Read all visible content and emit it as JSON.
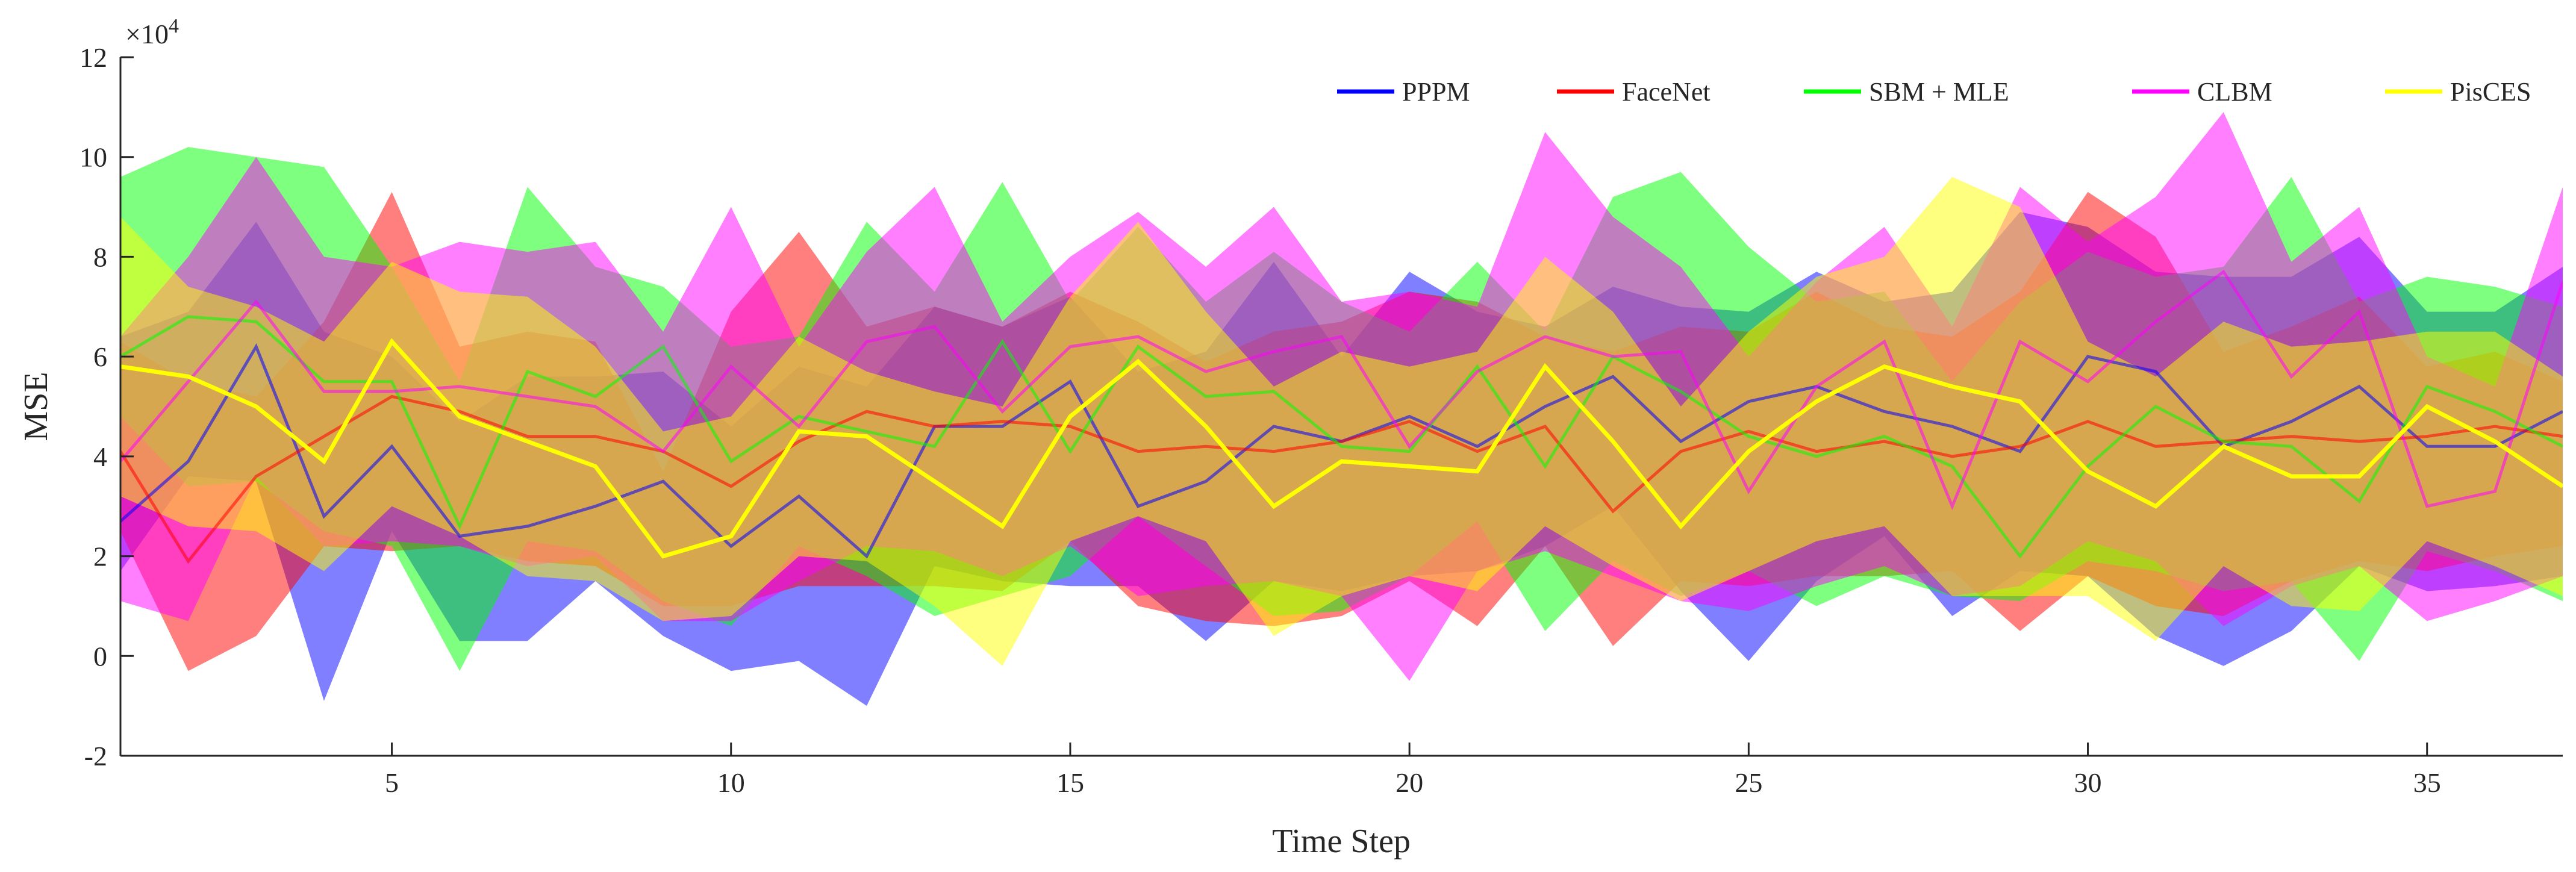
{
  "chart_data": {
    "type": "line",
    "title": "",
    "xlabel": "Time Step",
    "ylabel": "MSE",
    "y_exponent_label": "×10",
    "y_exponent_power": "4",
    "xlim": [
      1,
      37
    ],
    "ylim": [
      -2,
      12
    ],
    "x_ticks": [
      5,
      10,
      15,
      20,
      25,
      30,
      35
    ],
    "y_ticks": [
      -2,
      0,
      2,
      4,
      6,
      8,
      10,
      12
    ],
    "y_tick_labels": [
      "-2",
      "0",
      "2",
      "4",
      "6",
      "8",
      "10",
      "12"
    ],
    "x_tick_labels": [
      "5",
      "10",
      "15",
      "20",
      "25",
      "30",
      "35"
    ],
    "legend_position": "top-right",
    "grid": false,
    "x": [
      1,
      2,
      3,
      4,
      5,
      6,
      7,
      8,
      9,
      10,
      11,
      12,
      13,
      14,
      15,
      16,
      17,
      18,
      19,
      20,
      21,
      22,
      23,
      24,
      25,
      26,
      27,
      28,
      29,
      30,
      31,
      32,
      33,
      34,
      35,
      36,
      37
    ],
    "series": [
      {
        "name": "PPPM",
        "color": "#0000ff",
        "mean": [
          2.7,
          3.9,
          6.2,
          2.8,
          4.2,
          2.4,
          2.6,
          3.0,
          3.5,
          2.2,
          3.2,
          2.0,
          4.6,
          4.6,
          5.5,
          3.0,
          3.5,
          4.6,
          4.3,
          4.8,
          4.2,
          5.0,
          5.6,
          4.3,
          5.1,
          5.4,
          4.9,
          4.6,
          4.1,
          6.0,
          5.7,
          4.2,
          4.7,
          5.4,
          4.2,
          4.2,
          4.9
        ],
        "lower": [
          1.7,
          3.6,
          3.5,
          -0.9,
          2.5,
          0.3,
          0.3,
          1.5,
          0.4,
          -0.3,
          -0.1,
          -1.0,
          1.8,
          1.5,
          1.4,
          1.4,
          0.3,
          1.5,
          1.3,
          1.6,
          1.7,
          2.2,
          3.0,
          1.3,
          -0.1,
          1.5,
          2.4,
          0.8,
          1.7,
          1.6,
          0.4,
          -0.2,
          0.5,
          1.8,
          1.3,
          1.4,
          1.6
        ],
        "upper": [
          6.4,
          6.9,
          8.7,
          6.5,
          6.0,
          4.7,
          5.6,
          5.6,
          5.7,
          4.6,
          5.8,
          5.4,
          7.0,
          6.6,
          7.2,
          5.7,
          6.1,
          7.9,
          6.0,
          7.7,
          6.9,
          6.6,
          7.4,
          7.0,
          6.9,
          7.7,
          7.1,
          7.3,
          8.9,
          8.6,
          7.7,
          7.6,
          7.6,
          8.4,
          6.9,
          6.9,
          7.8
        ]
      },
      {
        "name": "FaceNet",
        "color": "#ff0000",
        "mean": [
          4.1,
          1.9,
          3.6,
          4.4,
          5.2,
          4.9,
          4.4,
          4.4,
          4.1,
          3.4,
          4.3,
          4.9,
          4.6,
          4.7,
          4.6,
          4.1,
          4.2,
          4.1,
          4.3,
          4.7,
          4.1,
          4.6,
          2.9,
          4.1,
          4.5,
          4.1,
          4.3,
          4.0,
          4.2,
          4.7,
          4.2,
          4.3,
          4.4,
          4.3,
          4.4,
          4.6,
          4.4
        ],
        "lower": [
          2.5,
          -0.3,
          0.4,
          2.2,
          2.1,
          2.2,
          1.9,
          1.8,
          1.0,
          1.0,
          1.4,
          1.4,
          1.4,
          1.3,
          2.3,
          1.0,
          0.7,
          0.6,
          0.8,
          1.5,
          0.6,
          2.2,
          0.2,
          1.5,
          1.4,
          1.6,
          1.6,
          1.7,
          0.5,
          1.6,
          1.0,
          0.8,
          1.5,
          1.9,
          1.7,
          2.0,
          2.2
        ],
        "upper": [
          6.3,
          5.5,
          5.2,
          6.7,
          9.3,
          6.2,
          6.5,
          6.3,
          3.7,
          6.9,
          8.5,
          6.6,
          7.0,
          6.6,
          7.3,
          6.7,
          5.9,
          6.5,
          6.7,
          7.3,
          7.1,
          6.4,
          6.1,
          6.6,
          6.5,
          7.3,
          6.6,
          6.4,
          7.3,
          9.3,
          8.4,
          6.1,
          6.6,
          7.2,
          5.8,
          6.1,
          5.5
        ]
      },
      {
        "name": "SBM + MLE",
        "color": "#00ff00",
        "mean": [
          6.0,
          6.8,
          6.7,
          5.5,
          5.5,
          2.6,
          5.7,
          5.2,
          6.2,
          3.9,
          4.8,
          4.5,
          4.2,
          6.3,
          4.1,
          6.2,
          5.2,
          5.3,
          4.2,
          4.1,
          5.8,
          3.8,
          6.0,
          5.3,
          4.4,
          4.0,
          4.4,
          3.8,
          2.0,
          3.8,
          5.0,
          4.3,
          4.2,
          3.1,
          5.4,
          4.9,
          4.2
        ],
        "lower": [
          4.8,
          3.4,
          3.5,
          2.5,
          2.2,
          -0.3,
          2.3,
          2.1,
          1.1,
          0.6,
          2.2,
          1.6,
          0.8,
          1.2,
          1.6,
          2.8,
          1.8,
          0.8,
          0.9,
          1.6,
          2.7,
          0.5,
          1.9,
          1.2,
          1.7,
          1.0,
          1.6,
          1.2,
          1.1,
          1.9,
          1.7,
          1.3,
          1.5,
          -0.1,
          2.1,
          1.7,
          1.1
        ],
        "upper": [
          9.6,
          10.2,
          10.0,
          9.8,
          7.8,
          5.5,
          9.4,
          7.8,
          7.4,
          6.2,
          6.4,
          8.7,
          7.3,
          9.5,
          7.1,
          8.6,
          7.1,
          8.1,
          7.1,
          6.5,
          7.9,
          6.5,
          9.2,
          9.7,
          8.2,
          7.1,
          7.3,
          5.5,
          7.1,
          8.1,
          7.6,
          7.8,
          9.6,
          7.1,
          7.6,
          7.4,
          7.0
        ]
      },
      {
        "name": "CLBM",
        "color": "#ff00ff",
        "mean": [
          3.9,
          5.5,
          7.1,
          5.3,
          5.3,
          5.4,
          5.2,
          5.0,
          4.1,
          5.8,
          4.6,
          6.3,
          6.6,
          4.9,
          6.2,
          6.4,
          5.7,
          6.1,
          6.4,
          4.2,
          5.7,
          6.4,
          6.0,
          6.1,
          3.3,
          5.4,
          6.3,
          3.0,
          6.3,
          5.5,
          6.7,
          7.7,
          5.6,
          6.9,
          3.0,
          3.3,
          7.5
        ],
        "lower": [
          1.1,
          0.7,
          3.6,
          2.2,
          2.3,
          2.2,
          1.8,
          2.0,
          0.7,
          0.7,
          1.5,
          2.2,
          2.1,
          1.6,
          2.2,
          1.2,
          1.4,
          1.5,
          1.2,
          -0.5,
          1.7,
          2.1,
          1.6,
          1.1,
          0.9,
          1.4,
          1.8,
          1.2,
          1.4,
          2.3,
          1.9,
          0.6,
          1.4,
          1.8,
          0.7,
          1.1,
          1.6
        ],
        "upper": [
          6.4,
          8.0,
          10.0,
          8.0,
          7.8,
          8.3,
          8.1,
          8.3,
          6.5,
          9.0,
          6.2,
          8.1,
          9.4,
          6.7,
          8.0,
          8.9,
          7.8,
          9.0,
          7.1,
          7.3,
          7.0,
          10.5,
          8.8,
          7.8,
          6.0,
          7.5,
          8.6,
          6.6,
          9.4,
          8.3,
          9.2,
          10.9,
          7.9,
          9.0,
          6.0,
          5.4,
          9.4
        ]
      },
      {
        "name": "PisCES",
        "color": "#ffff00",
        "mean": [
          5.8,
          5.6,
          5.0,
          3.9,
          6.3,
          4.8,
          4.3,
          3.8,
          2.0,
          2.4,
          4.5,
          4.4,
          3.5,
          2.6,
          4.8,
          5.9,
          4.6,
          3.0,
          3.9,
          3.8,
          3.7,
          5.8,
          4.3,
          2.6,
          4.1,
          5.1,
          5.8,
          5.4,
          5.1,
          3.7,
          3.0,
          4.2,
          3.6,
          3.6,
          5.0,
          4.3,
          3.4
        ],
        "lower": [
          3.2,
          2.6,
          2.5,
          1.7,
          3.0,
          2.4,
          1.6,
          1.5,
          0.7,
          0.8,
          2.0,
          1.9,
          1.0,
          -0.2,
          2.3,
          2.8,
          2.3,
          0.4,
          1.2,
          1.6,
          1.3,
          2.6,
          1.8,
          1.1,
          1.7,
          2.3,
          2.6,
          1.2,
          1.2,
          1.2,
          0.3,
          1.8,
          1.0,
          0.9,
          2.3,
          1.8,
          1.2
        ],
        "upper": [
          8.8,
          7.4,
          7.0,
          6.3,
          7.9,
          7.3,
          7.2,
          6.2,
          4.5,
          4.8,
          6.4,
          5.7,
          5.3,
          5.0,
          7.2,
          8.7,
          6.9,
          5.4,
          6.1,
          5.8,
          6.1,
          8.0,
          6.9,
          5.0,
          6.5,
          7.6,
          8.0,
          9.6,
          9.0,
          6.3,
          5.6,
          6.7,
          6.2,
          6.3,
          6.5,
          6.5,
          5.6
        ]
      }
    ]
  }
}
